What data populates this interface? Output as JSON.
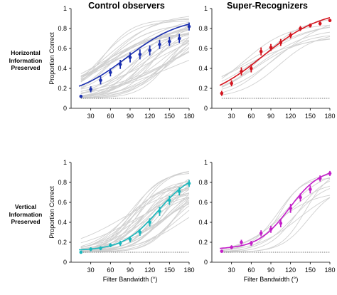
{
  "columns": [
    "Control observers",
    "Super-Recognizers"
  ],
  "rows": [
    [
      "Horizontal",
      "Information",
      "Preserved"
    ],
    [
      "Vertical",
      "Information",
      "Preserved"
    ]
  ],
  "colors": {
    "control_horizontal": "#1a2fb0",
    "super_horizontal": "#d4141e",
    "control_vertical": "#1ab8bd",
    "super_vertical": "#c41fc9",
    "individual_curves": "#d0d0d0",
    "chance_line": "#444444"
  },
  "chart_data": [
    {
      "type": "line",
      "panel": "control-horizontal",
      "xlabel": "",
      "ylabel": "Proportion Correct",
      "xlim": [
        0,
        180
      ],
      "ylim": [
        0,
        1
      ],
      "xticks": [
        30,
        60,
        90,
        120,
        150,
        180
      ],
      "yticks": [
        0,
        0.2,
        0.4,
        0.6,
        0.8,
        1
      ],
      "chance_level": 0.1,
      "x": [
        15,
        30,
        45,
        60,
        75,
        90,
        105,
        120,
        135,
        150,
        165,
        180
      ],
      "series": [
        {
          "values": [
            0.12,
            0.19,
            0.28,
            0.36,
            0.44,
            0.51,
            0.54,
            0.58,
            0.64,
            0.67,
            0.7,
            0.82
          ],
          "errors": [
            0.015,
            0.03,
            0.04,
            0.04,
            0.045,
            0.05,
            0.05,
            0.05,
            0.045,
            0.045,
            0.045,
            0.04
          ]
        }
      ],
      "fit": {
        "ymin": 0.1,
        "ymax": 0.92,
        "xmid": 85,
        "slope": 0.024
      },
      "individual_fits": {
        "ymin": 0.1,
        "ymax": 0.95,
        "xmid_range": [
          30,
          165
        ],
        "slope_range": [
          0.015,
          0.045
        ],
        "count": 38
      }
    },
    {
      "type": "line",
      "panel": "super-horizontal",
      "xlabel": "",
      "ylabel": "",
      "xlim": [
        0,
        180
      ],
      "ylim": [
        0,
        1
      ],
      "xticks": [
        30,
        60,
        90,
        120,
        150,
        180
      ],
      "yticks": [
        0,
        0.2,
        0.4,
        0.6,
        0.8,
        1
      ],
      "chance_level": 0.1,
      "x": [
        15,
        30,
        45,
        60,
        75,
        90,
        105,
        120,
        135,
        150,
        165,
        180
      ],
      "series": [
        {
          "values": [
            0.15,
            0.25,
            0.37,
            0.4,
            0.57,
            0.61,
            0.66,
            0.73,
            0.8,
            0.83,
            0.85,
            0.88
          ],
          "errors": [
            0.025,
            0.03,
            0.04,
            0.04,
            0.04,
            0.035,
            0.035,
            0.03,
            0.025,
            0.02,
            0.02,
            0.015
          ]
        }
      ],
      "fit": {
        "ymin": 0.05,
        "ymax": 1.0,
        "xmid": 78,
        "slope": 0.022
      },
      "individual_fits": {
        "ymin": 0.1,
        "ymax": 0.95,
        "xmid_range": [
          45,
          110
        ],
        "slope_range": [
          0.02,
          0.04
        ],
        "count": 10
      }
    },
    {
      "type": "line",
      "panel": "control-vertical",
      "xlabel": "Filter Bandwidth (°)",
      "ylabel": "Proportion Correct",
      "xlim": [
        0,
        180
      ],
      "ylim": [
        0,
        1
      ],
      "xticks": [
        30,
        60,
        90,
        120,
        150,
        180
      ],
      "yticks": [
        0,
        0.2,
        0.4,
        0.6,
        0.8,
        1
      ],
      "chance_level": 0.1,
      "x": [
        15,
        30,
        45,
        60,
        75,
        90,
        105,
        120,
        135,
        150,
        165,
        180
      ],
      "series": [
        {
          "values": [
            0.1,
            0.13,
            0.14,
            0.17,
            0.19,
            0.23,
            0.3,
            0.4,
            0.51,
            0.62,
            0.71,
            0.79
          ],
          "errors": [
            0.015,
            0.02,
            0.02,
            0.02,
            0.025,
            0.03,
            0.035,
            0.04,
            0.045,
            0.045,
            0.04,
            0.035
          ]
        }
      ],
      "fit": {
        "ymin": 0.115,
        "ymax": 0.92,
        "xmid": 133,
        "slope": 0.037
      },
      "individual_fits": {
        "ymin": 0.1,
        "ymax": 0.95,
        "xmid_range": [
          80,
          175
        ],
        "slope_range": [
          0.02,
          0.05
        ],
        "count": 38
      }
    },
    {
      "type": "line",
      "panel": "super-vertical",
      "xlabel": "Filter Bandwidth (°)",
      "ylabel": "",
      "xlim": [
        0,
        180
      ],
      "ylim": [
        0,
        1
      ],
      "xticks": [
        30,
        60,
        90,
        120,
        150,
        180
      ],
      "yticks": [
        0,
        0.2,
        0.4,
        0.6,
        0.8,
        1
      ],
      "chance_level": 0.1,
      "x": [
        15,
        30,
        45,
        60,
        75,
        90,
        105,
        120,
        135,
        150,
        165,
        180
      ],
      "series": [
        {
          "values": [
            0.11,
            0.15,
            0.2,
            0.19,
            0.29,
            0.33,
            0.39,
            0.54,
            0.65,
            0.73,
            0.84,
            0.89
          ],
          "errors": [
            0.015,
            0.02,
            0.025,
            0.025,
            0.03,
            0.035,
            0.04,
            0.045,
            0.04,
            0.04,
            0.03,
            0.025
          ]
        }
      ],
      "fit": {
        "ymin": 0.13,
        "ymax": 0.95,
        "xmid": 118,
        "slope": 0.042
      },
      "individual_fits": {
        "ymin": 0.1,
        "ymax": 0.95,
        "xmid_range": [
          85,
          150
        ],
        "slope_range": [
          0.03,
          0.06
        ],
        "count": 10
      }
    }
  ]
}
